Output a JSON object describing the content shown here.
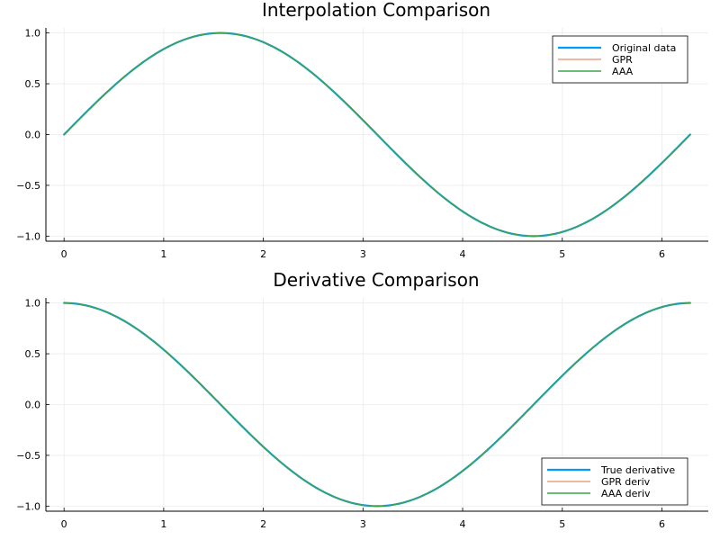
{
  "colors": {
    "series1": "#009af9",
    "series2": "#e26f46",
    "series3": "#3da44d",
    "grid": "#ebebeb",
    "axis": "#000000"
  },
  "chart_data": [
    {
      "type": "line",
      "title": "Interpolation Comparison",
      "xlabel": "",
      "ylabel": "",
      "xlim": [
        0,
        6.283
      ],
      "ylim": [
        -1.05,
        1.05
      ],
      "xticks": [
        "0",
        "1",
        "2",
        "3",
        "4",
        "5",
        "6"
      ],
      "yticks": [
        "1.0",
        "0.5",
        "0.0",
        "−0.5",
        "−1.0"
      ],
      "grid": true,
      "legend_position": "top-right",
      "curve": "sin(x)",
      "x": [
        0,
        0.5,
        1,
        1.5708,
        2,
        2.5,
        3,
        3.1416,
        3.5,
        4,
        4.7124,
        5,
        5.5,
        6,
        6.2832
      ],
      "series": [
        {
          "name": "Original data",
          "values": [
            0,
            0.479,
            0.841,
            1,
            0.909,
            0.598,
            0.141,
            0,
            -0.351,
            -0.757,
            -1,
            -0.959,
            -0.706,
            -0.279,
            0
          ],
          "color": "#009af9",
          "width": 2.2
        },
        {
          "name": "GPR",
          "values": [
            0,
            0.479,
            0.841,
            1,
            0.909,
            0.598,
            0.141,
            0,
            -0.351,
            -0.757,
            -1,
            -0.959,
            -0.706,
            -0.279,
            0
          ],
          "color": "#e26f46",
          "width": 1
        },
        {
          "name": "AAA",
          "values": [
            0,
            0.479,
            0.841,
            1,
            0.909,
            0.598,
            0.141,
            0,
            -0.351,
            -0.757,
            -1,
            -0.959,
            -0.706,
            -0.279,
            0
          ],
          "color": "#3da44d",
          "width": 1.4
        }
      ]
    },
    {
      "type": "line",
      "title": "Derivative Comparison",
      "xlabel": "",
      "ylabel": "",
      "xlim": [
        0,
        6.283
      ],
      "ylim": [
        -1.05,
        1.05
      ],
      "xticks": [
        "0",
        "1",
        "2",
        "3",
        "4",
        "5",
        "6"
      ],
      "yticks": [
        "1.0",
        "0.5",
        "0.0",
        "−0.5",
        "−1.0"
      ],
      "grid": true,
      "legend_position": "bottom-right",
      "curve": "cos(x)",
      "x": [
        0,
        0.5,
        1,
        1.5708,
        2,
        2.5,
        3,
        3.1416,
        3.5,
        4,
        4.7124,
        5,
        5.5,
        6,
        6.2832
      ],
      "series": [
        {
          "name": "True derivative",
          "values": [
            1,
            0.878,
            0.54,
            0,
            -0.416,
            -0.801,
            -0.99,
            -1,
            -0.936,
            -0.654,
            0,
            0.284,
            0.709,
            0.96,
            1
          ],
          "color": "#009af9",
          "width": 2.2
        },
        {
          "name": "GPR deriv",
          "values": [
            1,
            0.878,
            0.54,
            0,
            -0.416,
            -0.801,
            -0.99,
            -1,
            -0.936,
            -0.654,
            0,
            0.284,
            0.709,
            0.96,
            1
          ],
          "color": "#e26f46",
          "width": 1
        },
        {
          "name": "AAA deriv",
          "values": [
            1,
            0.878,
            0.54,
            0,
            -0.416,
            -0.801,
            -0.99,
            -1,
            -0.936,
            -0.654,
            0,
            0.284,
            0.709,
            0.96,
            1
          ],
          "color": "#3da44d",
          "width": 1.4
        }
      ]
    }
  ]
}
